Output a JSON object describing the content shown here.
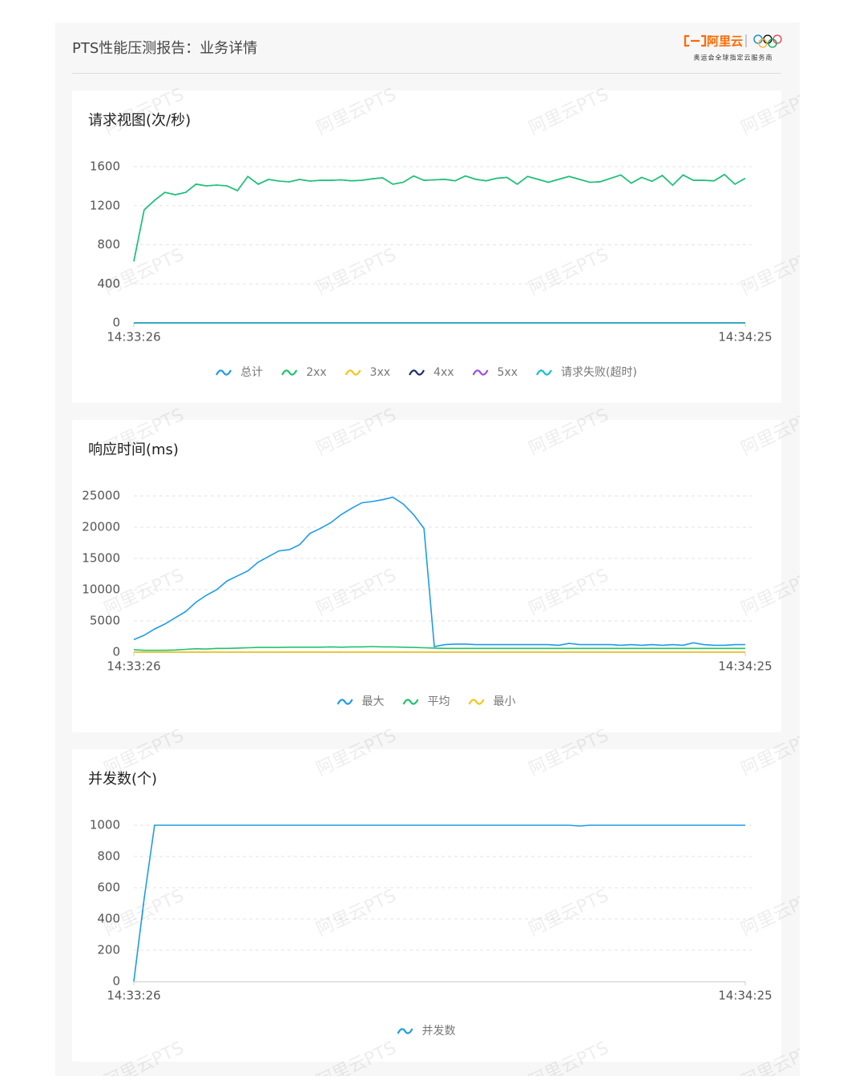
{
  "header": {
    "title": "PTS性能压测报告：业务详情",
    "logo": "阿里云",
    "logo_sub": "奥运会全球指定云服务商"
  },
  "watermark": "阿里云PTS",
  "chart_data": [
    {
      "type": "line",
      "title": "请求视图(次/秒)",
      "categories": [
        "14:33:26",
        null,
        null,
        null,
        null,
        null,
        null,
        null,
        null,
        null,
        null,
        null,
        null,
        null,
        null,
        null,
        null,
        null,
        null,
        null,
        null,
        null,
        null,
        null,
        null,
        null,
        null,
        null,
        null,
        null,
        null,
        null,
        null,
        null,
        null,
        null,
        null,
        null,
        null,
        null,
        null,
        null,
        null,
        null,
        null,
        null,
        null,
        null,
        null,
        null,
        null,
        null,
        null,
        null,
        null,
        null,
        null,
        null,
        null,
        "14:34:25"
      ],
      "ylim": [
        0,
        1600
      ],
      "yticks": [
        0,
        400,
        800,
        1200,
        1600
      ],
      "grid": true,
      "series": [
        {
          "name": "总计",
          "color": "#1e9be8",
          "values": [
            630,
            1157,
            1255,
            1337,
            1313,
            1337,
            1420,
            1403,
            1411,
            1403,
            1354,
            1500,
            1420,
            1469,
            1452,
            1444,
            1469,
            1452,
            1460,
            1460,
            1465,
            1455,
            1460,
            1475,
            1485,
            1420,
            1440,
            1505,
            1460,
            1465,
            1470,
            1455,
            1505,
            1470,
            1455,
            1480,
            1490,
            1420,
            1500,
            1470,
            1440,
            1470,
            1500,
            1470,
            1440,
            1445,
            1480,
            1515,
            1430,
            1490,
            1450,
            1510,
            1410,
            1515,
            1460,
            1460,
            1455,
            1520,
            1420,
            1480
          ]
        },
        {
          "name": "2xx",
          "color": "#1fc36f",
          "values": [
            630,
            1157,
            1255,
            1337,
            1313,
            1337,
            1420,
            1403,
            1411,
            1403,
            1354,
            1500,
            1420,
            1469,
            1452,
            1444,
            1469,
            1452,
            1460,
            1460,
            1465,
            1455,
            1460,
            1475,
            1485,
            1420,
            1440,
            1505,
            1460,
            1465,
            1470,
            1455,
            1505,
            1470,
            1455,
            1480,
            1490,
            1420,
            1500,
            1470,
            1440,
            1470,
            1500,
            1470,
            1440,
            1445,
            1480,
            1515,
            1430,
            1490,
            1450,
            1510,
            1410,
            1515,
            1460,
            1460,
            1455,
            1520,
            1420,
            1480
          ]
        },
        {
          "name": "3xx",
          "color": "#f5c518",
          "values": [
            0,
            0,
            0,
            0,
            0,
            0,
            0,
            0,
            0,
            0,
            0,
            0,
            0,
            0,
            0,
            0,
            0,
            0,
            0,
            0,
            0,
            0,
            0,
            0,
            0,
            0,
            0,
            0,
            0,
            0,
            0,
            0,
            0,
            0,
            0,
            0,
            0,
            0,
            0,
            0,
            0,
            0,
            0,
            0,
            0,
            0,
            0,
            0,
            0,
            0,
            0,
            0,
            0,
            0,
            0,
            0,
            0,
            0,
            0,
            0
          ]
        },
        {
          "name": "4xx",
          "color": "#1f2d6b",
          "values": [
            0,
            0,
            0,
            0,
            0,
            0,
            0,
            0,
            0,
            0,
            0,
            0,
            0,
            0,
            0,
            0,
            0,
            0,
            0,
            0,
            0,
            0,
            0,
            0,
            0,
            0,
            0,
            0,
            0,
            0,
            0,
            0,
            0,
            0,
            0,
            0,
            0,
            0,
            0,
            0,
            0,
            0,
            0,
            0,
            0,
            0,
            0,
            0,
            0,
            0,
            0,
            0,
            0,
            0,
            0,
            0,
            0,
            0,
            0,
            0
          ]
        },
        {
          "name": "5xx",
          "color": "#9b4fe0",
          "values": [
            0,
            0,
            0,
            0,
            0,
            0,
            0,
            0,
            0,
            0,
            0,
            0,
            0,
            0,
            0,
            0,
            0,
            0,
            0,
            0,
            0,
            0,
            0,
            0,
            0,
            0,
            0,
            0,
            0,
            0,
            0,
            0,
            0,
            0,
            0,
            0,
            0,
            0,
            0,
            0,
            0,
            0,
            0,
            0,
            0,
            0,
            0,
            0,
            0,
            0,
            0,
            0,
            0,
            0,
            0,
            0,
            0,
            0,
            0,
            0
          ]
        },
        {
          "name": "请求失败(超时)",
          "color": "#15c0c8",
          "values": [
            0,
            0,
            0,
            0,
            0,
            0,
            0,
            0,
            0,
            0,
            0,
            0,
            0,
            0,
            0,
            0,
            0,
            0,
            0,
            0,
            0,
            0,
            0,
            0,
            0,
            0,
            0,
            0,
            0,
            0,
            0,
            0,
            0,
            0,
            0,
            0,
            0,
            0,
            0,
            0,
            0,
            0,
            0,
            0,
            0,
            0,
            0,
            0,
            0,
            0,
            0,
            0,
            0,
            0,
            0,
            0,
            0,
            0,
            0,
            0
          ]
        }
      ]
    },
    {
      "type": "line",
      "title": "响应时间(ms)",
      "categories": [
        "14:33:26",
        null,
        null,
        null,
        null,
        null,
        null,
        null,
        null,
        null,
        null,
        null,
        null,
        null,
        null,
        null,
        null,
        null,
        null,
        null,
        null,
        null,
        null,
        null,
        null,
        null,
        null,
        null,
        null,
        null,
        null,
        null,
        null,
        null,
        null,
        null,
        null,
        null,
        null,
        null,
        null,
        null,
        null,
        null,
        null,
        null,
        null,
        null,
        null,
        null,
        null,
        null,
        null,
        null,
        null,
        null,
        null,
        null,
        null,
        "14:34:25"
      ],
      "ylim": [
        0,
        25000
      ],
      "yticks": [
        0,
        5000,
        10000,
        15000,
        20000,
        25000
      ],
      "grid": true,
      "series": [
        {
          "name": "最大",
          "color": "#1e9be8",
          "values": [
            2000,
            2700,
            3700,
            4500,
            5500,
            6500,
            8000,
            9100,
            10000,
            11400,
            12200,
            13000,
            14400,
            15300,
            16200,
            16400,
            17200,
            19000,
            19800,
            20700,
            22000,
            23000,
            23900,
            24100,
            24400,
            24800,
            23700,
            22000,
            19800,
            900,
            1200,
            1300,
            1300,
            1200,
            1200,
            1200,
            1200,
            1200,
            1200,
            1200,
            1200,
            1100,
            1400,
            1200,
            1200,
            1200,
            1200,
            1100,
            1200,
            1100,
            1200,
            1100,
            1200,
            1100,
            1500,
            1200,
            1100,
            1100,
            1200,
            1200
          ]
        },
        {
          "name": "平均",
          "color": "#1fc36f",
          "values": [
            400,
            300,
            300,
            300,
            350,
            450,
            550,
            500,
            600,
            600,
            650,
            700,
            750,
            750,
            750,
            800,
            800,
            800,
            800,
            850,
            800,
            850,
            850,
            900,
            850,
            850,
            800,
            750,
            700,
            650,
            600,
            600,
            600,
            600,
            600,
            600,
            600,
            600,
            600,
            600,
            600,
            600,
            600,
            600,
            600,
            600,
            600,
            600,
            600,
            600,
            600,
            600,
            600,
            600,
            600,
            600,
            600,
            600,
            600,
            600
          ]
        },
        {
          "name": "最小",
          "color": "#f5c518",
          "values": [
            30,
            30,
            30,
            30,
            30,
            30,
            30,
            30,
            30,
            30,
            30,
            30,
            30,
            30,
            30,
            30,
            30,
            30,
            30,
            30,
            30,
            30,
            30,
            30,
            30,
            30,
            30,
            30,
            30,
            30,
            30,
            30,
            30,
            30,
            30,
            30,
            30,
            30,
            30,
            30,
            30,
            30,
            30,
            30,
            30,
            30,
            30,
            30,
            30,
            30,
            30,
            30,
            30,
            30,
            30,
            30,
            30,
            30,
            30,
            30
          ]
        }
      ]
    },
    {
      "type": "line",
      "title": "并发数(个)",
      "categories": [
        "14:33:26",
        null,
        null,
        null,
        null,
        null,
        null,
        null,
        null,
        null,
        null,
        null,
        null,
        null,
        null,
        null,
        null,
        null,
        null,
        null,
        null,
        null,
        null,
        null,
        null,
        null,
        null,
        null,
        null,
        null,
        null,
        null,
        null,
        null,
        null,
        null,
        null,
        null,
        null,
        null,
        null,
        null,
        null,
        null,
        null,
        null,
        null,
        null,
        null,
        null,
        null,
        null,
        null,
        null,
        null,
        null,
        null,
        null,
        null,
        "14:34:25"
      ],
      "ylim": [
        0,
        1000
      ],
      "yticks": [
        0,
        200,
        400,
        600,
        800,
        1000
      ],
      "grid": true,
      "series": [
        {
          "name": "并发数",
          "color": "#1e9be8",
          "values": [
            0,
            530,
            1000,
            1000,
            1000,
            1000,
            1000,
            1000,
            1000,
            1000,
            1000,
            1000,
            1000,
            1000,
            1000,
            1000,
            1000,
            1000,
            1000,
            1000,
            1000,
            1000,
            1000,
            1000,
            1000,
            1000,
            1000,
            1000,
            1000,
            1000,
            1000,
            1000,
            1000,
            1000,
            1000,
            1000,
            1000,
            1000,
            1000,
            1000,
            1000,
            1000,
            1000,
            995,
            1000,
            1000,
            1000,
            1000,
            1000,
            1000,
            1000,
            1000,
            1000,
            1000,
            1000,
            1000,
            1000,
            1000,
            1000,
            1000
          ]
        }
      ]
    }
  ]
}
